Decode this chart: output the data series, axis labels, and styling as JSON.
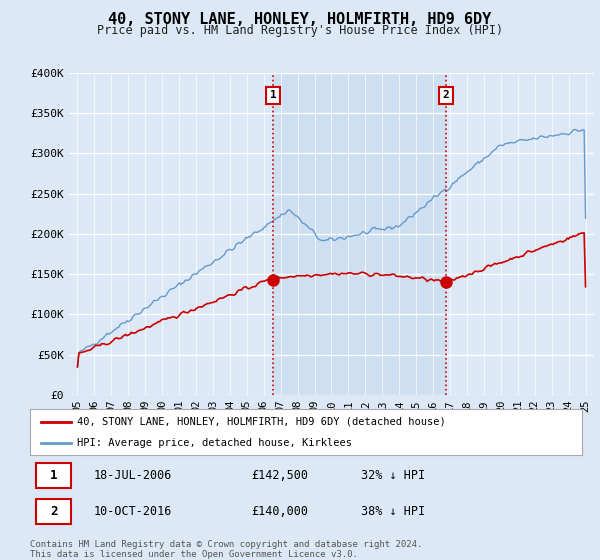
{
  "title": "40, STONY LANE, HONLEY, HOLMFIRTH, HD9 6DY",
  "subtitle": "Price paid vs. HM Land Registry's House Price Index (HPI)",
  "ylim": [
    0,
    400000
  ],
  "yticks": [
    0,
    50000,
    100000,
    150000,
    200000,
    250000,
    300000,
    350000,
    400000
  ],
  "ytick_labels": [
    "£0",
    "£50K",
    "£100K",
    "£150K",
    "£200K",
    "£250K",
    "£300K",
    "£350K",
    "£400K"
  ],
  "x_start_year": 1995,
  "x_end_year": 2025,
  "background_color": "#dce8f5",
  "plot_bg_color": "#dce8f5",
  "shade_color": "#c8dcf0",
  "grid_color": "#ffffff",
  "red_line_color": "#cc0000",
  "blue_line_color": "#6699cc",
  "sale1_year": 2006.54,
  "sale1_price": 142500,
  "sale2_year": 2016.77,
  "sale2_price": 140000,
  "legend_line1": "40, STONY LANE, HONLEY, HOLMFIRTH, HD9 6DY (detached house)",
  "legend_line2": "HPI: Average price, detached house, Kirklees",
  "footer1": "Contains HM Land Registry data © Crown copyright and database right 2024.",
  "footer2": "This data is licensed under the Open Government Licence v3.0."
}
